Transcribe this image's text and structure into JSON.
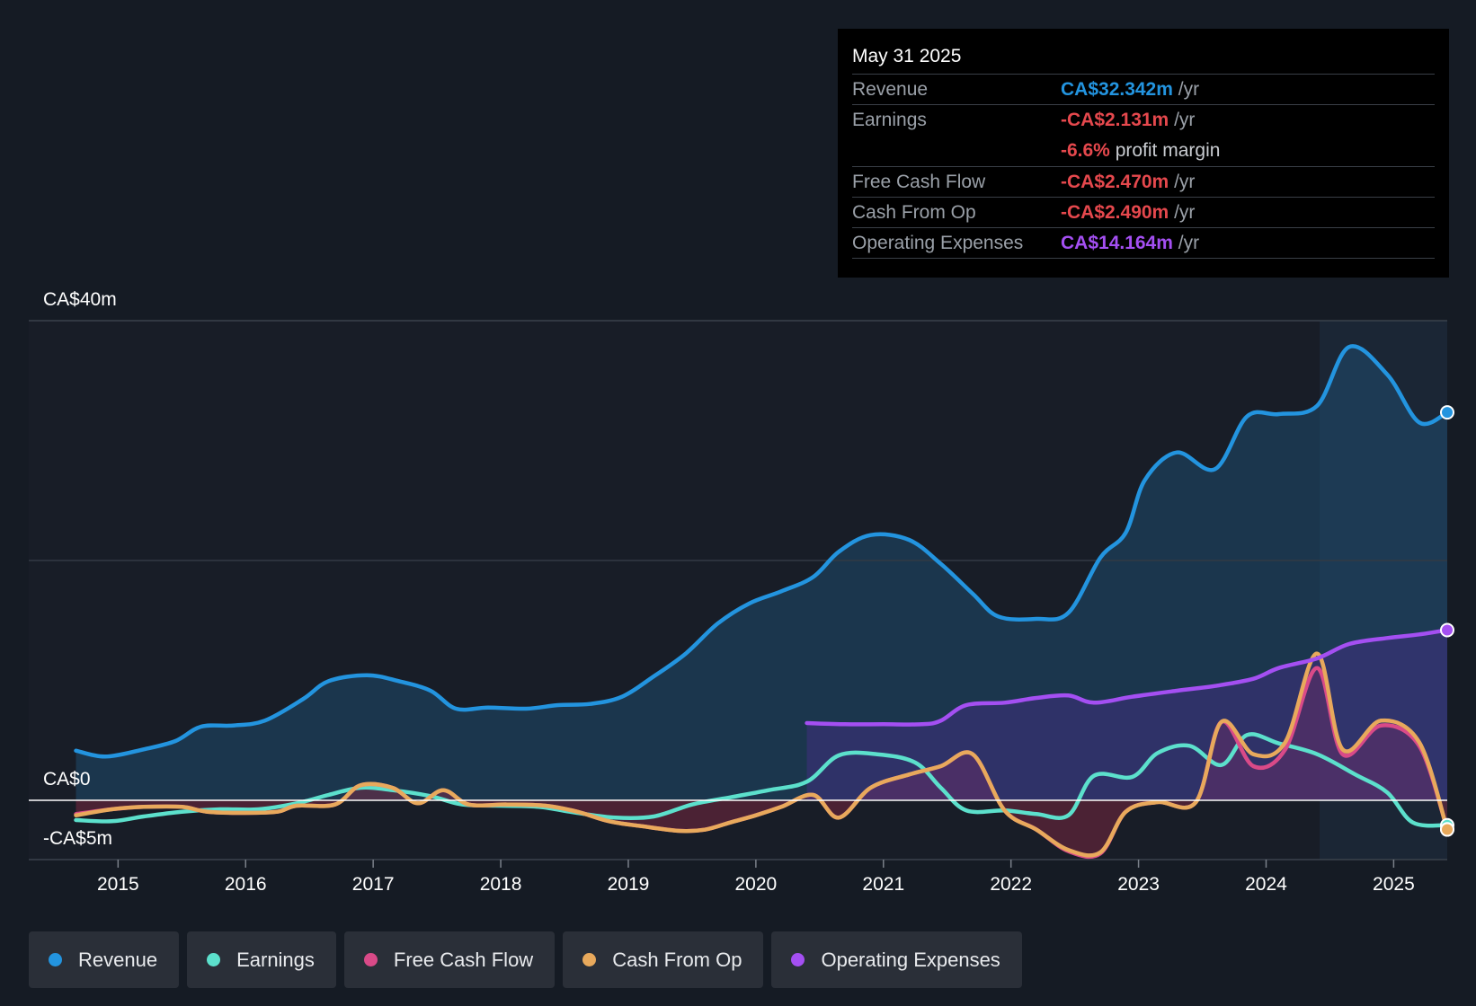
{
  "chart_data": {
    "type": "line",
    "title": "",
    "y_axis": {
      "min": -5,
      "max": 40,
      "unit": "CA$m",
      "tick_labels": {
        "top": "CA$40m",
        "zero": "CA$0",
        "bottom": "-CA$5m"
      }
    },
    "x_axis": {
      "min": 2014.3,
      "max": 2025.42,
      "ticks": [
        "2015",
        "2016",
        "2017",
        "2018",
        "2019",
        "2020",
        "2021",
        "2022",
        "2023",
        "2024",
        "2025"
      ]
    },
    "forecast_band_start": 2024.42,
    "series": [
      {
        "name": "Revenue",
        "color": "#2394df",
        "fill": true,
        "points": [
          [
            2014.67,
            4.1
          ],
          [
            2014.9,
            3.6
          ],
          [
            2015.2,
            4.2
          ],
          [
            2015.45,
            4.9
          ],
          [
            2015.65,
            6.1
          ],
          [
            2015.9,
            6.2
          ],
          [
            2016.15,
            6.6
          ],
          [
            2016.45,
            8.4
          ],
          [
            2016.65,
            9.9
          ],
          [
            2016.95,
            10.4
          ],
          [
            2017.2,
            9.9
          ],
          [
            2017.45,
            9.1
          ],
          [
            2017.65,
            7.6
          ],
          [
            2017.9,
            7.7
          ],
          [
            2018.2,
            7.6
          ],
          [
            2018.45,
            7.9
          ],
          [
            2018.7,
            8.0
          ],
          [
            2018.95,
            8.6
          ],
          [
            2019.2,
            10.3
          ],
          [
            2019.45,
            12.2
          ],
          [
            2019.7,
            14.7
          ],
          [
            2019.95,
            16.4
          ],
          [
            2020.2,
            17.4
          ],
          [
            2020.45,
            18.6
          ],
          [
            2020.65,
            20.7
          ],
          [
            2020.9,
            22.1
          ],
          [
            2021.2,
            21.7
          ],
          [
            2021.45,
            19.7
          ],
          [
            2021.7,
            17.2
          ],
          [
            2021.9,
            15.3
          ],
          [
            2022.2,
            15.1
          ],
          [
            2022.45,
            15.6
          ],
          [
            2022.7,
            20.2
          ],
          [
            2022.9,
            22.3
          ],
          [
            2023.05,
            26.7
          ],
          [
            2023.3,
            29.0
          ],
          [
            2023.6,
            27.6
          ],
          [
            2023.85,
            32.0
          ],
          [
            2024.1,
            32.2
          ],
          [
            2024.4,
            32.9
          ],
          [
            2024.65,
            37.8
          ],
          [
            2024.95,
            35.5
          ],
          [
            2025.2,
            31.5
          ],
          [
            2025.42,
            32.342
          ]
        ]
      },
      {
        "name": "Earnings",
        "color": "#5ce0cc",
        "fill": false,
        "points": [
          [
            2014.67,
            -1.7
          ],
          [
            2014.95,
            -1.8
          ],
          [
            2015.2,
            -1.4
          ],
          [
            2015.5,
            -1.0
          ],
          [
            2015.8,
            -0.8
          ],
          [
            2016.1,
            -0.8
          ],
          [
            2016.4,
            -0.3
          ],
          [
            2016.65,
            0.4
          ],
          [
            2016.9,
            1.0
          ],
          [
            2017.15,
            0.8
          ],
          [
            2017.45,
            0.3
          ],
          [
            2017.7,
            -0.4
          ],
          [
            2018.0,
            -0.5
          ],
          [
            2018.3,
            -0.6
          ],
          [
            2018.6,
            -1.1
          ],
          [
            2018.9,
            -1.5
          ],
          [
            2019.2,
            -1.4
          ],
          [
            2019.5,
            -0.4
          ],
          [
            2019.8,
            0.2
          ],
          [
            2020.1,
            0.8
          ],
          [
            2020.4,
            1.5
          ],
          [
            2020.65,
            3.7
          ],
          [
            2020.95,
            3.8
          ],
          [
            2021.25,
            3.1
          ],
          [
            2021.45,
            1.0
          ],
          [
            2021.65,
            -0.9
          ],
          [
            2021.95,
            -0.9
          ],
          [
            2022.2,
            -1.2
          ],
          [
            2022.45,
            -1.3
          ],
          [
            2022.65,
            2.0
          ],
          [
            2022.95,
            1.9
          ],
          [
            2023.15,
            3.9
          ],
          [
            2023.4,
            4.5
          ],
          [
            2023.65,
            2.9
          ],
          [
            2023.85,
            5.4
          ],
          [
            2024.1,
            4.7
          ],
          [
            2024.4,
            3.8
          ],
          [
            2024.7,
            2.1
          ],
          [
            2024.95,
            0.6
          ],
          [
            2025.15,
            -1.9
          ],
          [
            2025.42,
            -2.131
          ]
        ]
      },
      {
        "name": "Free Cash Flow",
        "color": "#d94a88",
        "fill": true,
        "points": [
          [
            2014.67,
            -1.2
          ],
          [
            2014.95,
            -0.8
          ],
          [
            2015.2,
            -0.6
          ],
          [
            2015.5,
            -0.6
          ],
          [
            2015.7,
            -1.0
          ],
          [
            2016.0,
            -1.1
          ],
          [
            2016.25,
            -1.0
          ],
          [
            2016.4,
            -0.5
          ],
          [
            2016.7,
            -0.4
          ],
          [
            2016.9,
            1.2
          ],
          [
            2017.15,
            1.0
          ],
          [
            2017.35,
            -0.3
          ],
          [
            2017.55,
            0.8
          ],
          [
            2017.75,
            -0.4
          ],
          [
            2018.05,
            -0.4
          ],
          [
            2018.35,
            -0.5
          ],
          [
            2018.6,
            -1.0
          ],
          [
            2018.85,
            -1.8
          ],
          [
            2019.1,
            -2.2
          ],
          [
            2019.4,
            -2.6
          ],
          [
            2019.6,
            -2.5
          ],
          [
            2019.8,
            -1.9
          ],
          [
            2020.0,
            -1.3
          ],
          [
            2020.2,
            -0.6
          ],
          [
            2020.45,
            0.4
          ],
          [
            2020.65,
            -1.5
          ],
          [
            2020.9,
            1.0
          ],
          [
            2021.2,
            2.1
          ],
          [
            2021.45,
            2.8
          ],
          [
            2021.7,
            3.8
          ],
          [
            2021.95,
            -0.9
          ],
          [
            2022.2,
            -2.5
          ],
          [
            2022.45,
            -4.3
          ],
          [
            2022.7,
            -4.5
          ],
          [
            2022.9,
            -1.0
          ],
          [
            2023.15,
            -0.2
          ],
          [
            2023.45,
            -0.2
          ],
          [
            2023.65,
            6.5
          ],
          [
            2023.9,
            2.8
          ],
          [
            2024.15,
            4.2
          ],
          [
            2024.4,
            11.0
          ],
          [
            2024.6,
            3.8
          ],
          [
            2024.9,
            6.2
          ],
          [
            2025.2,
            4.5
          ],
          [
            2025.42,
            -2.47
          ]
        ]
      },
      {
        "name": "Cash From Op",
        "color": "#e8a95c",
        "fill": false,
        "points": [
          [
            2014.67,
            -1.3
          ],
          [
            2014.95,
            -0.8
          ],
          [
            2015.2,
            -0.6
          ],
          [
            2015.5,
            -0.6
          ],
          [
            2015.7,
            -1.0
          ],
          [
            2016.0,
            -1.1
          ],
          [
            2016.25,
            -1.0
          ],
          [
            2016.4,
            -0.5
          ],
          [
            2016.7,
            -0.4
          ],
          [
            2016.9,
            1.2
          ],
          [
            2017.15,
            1.0
          ],
          [
            2017.35,
            -0.3
          ],
          [
            2017.55,
            0.8
          ],
          [
            2017.75,
            -0.4
          ],
          [
            2018.05,
            -0.4
          ],
          [
            2018.35,
            -0.5
          ],
          [
            2018.6,
            -1.0
          ],
          [
            2018.85,
            -1.8
          ],
          [
            2019.1,
            -2.2
          ],
          [
            2019.4,
            -2.6
          ],
          [
            2019.6,
            -2.5
          ],
          [
            2019.8,
            -1.9
          ],
          [
            2020.0,
            -1.3
          ],
          [
            2020.2,
            -0.6
          ],
          [
            2020.45,
            0.4
          ],
          [
            2020.65,
            -1.5
          ],
          [
            2020.9,
            1.0
          ],
          [
            2021.2,
            2.1
          ],
          [
            2021.45,
            2.8
          ],
          [
            2021.7,
            3.8
          ],
          [
            2021.95,
            -0.9
          ],
          [
            2022.2,
            -2.5
          ],
          [
            2022.45,
            -4.2
          ],
          [
            2022.7,
            -4.4
          ],
          [
            2022.9,
            -1.0
          ],
          [
            2023.15,
            -0.2
          ],
          [
            2023.45,
            -0.2
          ],
          [
            2023.65,
            6.5
          ],
          [
            2023.9,
            3.8
          ],
          [
            2024.15,
            4.8
          ],
          [
            2024.4,
            12.2
          ],
          [
            2024.6,
            4.2
          ],
          [
            2024.9,
            6.6
          ],
          [
            2025.2,
            4.8
          ],
          [
            2025.42,
            -2.49
          ]
        ]
      },
      {
        "name": "Operating Expenses",
        "color": "#a44ff2",
        "fill": true,
        "points": [
          [
            2020.4,
            6.4
          ],
          [
            2020.7,
            6.3
          ],
          [
            2021.0,
            6.3
          ],
          [
            2021.3,
            6.3
          ],
          [
            2021.45,
            6.6
          ],
          [
            2021.65,
            7.9
          ],
          [
            2021.95,
            8.1
          ],
          [
            2022.2,
            8.5
          ],
          [
            2022.45,
            8.7
          ],
          [
            2022.65,
            8.1
          ],
          [
            2022.95,
            8.6
          ],
          [
            2023.3,
            9.1
          ],
          [
            2023.6,
            9.5
          ],
          [
            2023.9,
            10.1
          ],
          [
            2024.1,
            11.0
          ],
          [
            2024.4,
            11.8
          ],
          [
            2024.65,
            13.0
          ],
          [
            2024.95,
            13.5
          ],
          [
            2025.2,
            13.8
          ],
          [
            2025.42,
            14.164
          ]
        ]
      }
    ]
  },
  "tooltip": {
    "date": "May 31 2025",
    "rows": [
      {
        "label": "Revenue",
        "value": "CA$32.342m",
        "unit": "/yr",
        "color": "#2394df"
      },
      {
        "label": "Earnings",
        "value": "-CA$2.131m",
        "unit": "/yr",
        "color": "#e5484d"
      },
      {
        "label": "Free Cash Flow",
        "value": "-CA$2.470m",
        "unit": "/yr",
        "color": "#e5484d"
      },
      {
        "label": "Cash From Op",
        "value": "-CA$2.490m",
        "unit": "/yr",
        "color": "#e5484d"
      },
      {
        "label": "Operating Expenses",
        "value": "CA$14.164m",
        "unit": "/yr",
        "color": "#a44ff2"
      }
    ],
    "margin": {
      "value": "-6.6%",
      "text": "profit margin",
      "color": "#e5484d"
    }
  },
  "legend": [
    {
      "label": "Revenue",
      "color": "#2394df"
    },
    {
      "label": "Earnings",
      "color": "#5ce0cc"
    },
    {
      "label": "Free Cash Flow",
      "color": "#d94a88"
    },
    {
      "label": "Cash From Op",
      "color": "#e8a95c"
    },
    {
      "label": "Operating Expenses",
      "color": "#a44ff2"
    }
  ]
}
